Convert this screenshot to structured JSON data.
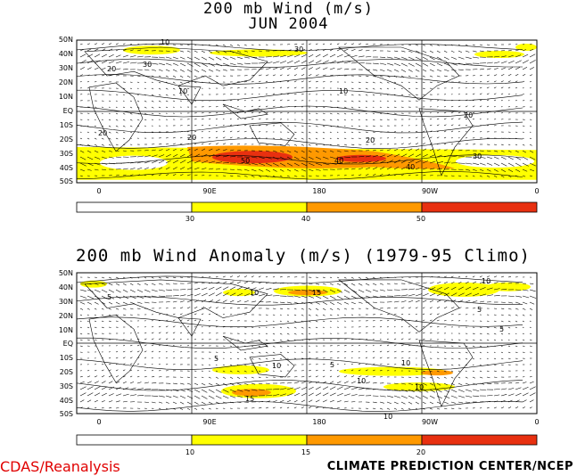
{
  "top": {
    "title_line1": "200 mb Wind (m/s)",
    "title_line2": "JUN 2004",
    "lat_labels": [
      "50N",
      "40N",
      "30N",
      "20N",
      "10N",
      "EQ",
      "10S",
      "20S",
      "30S",
      "40S",
      "50S"
    ],
    "lon_labels": [
      "0",
      "90E",
      "180",
      "90W",
      "0"
    ],
    "colorbar": [
      "30",
      "40",
      "50"
    ],
    "contour_labels": [
      "10",
      "20",
      "30",
      "40",
      "50"
    ]
  },
  "bottom": {
    "title": "200 mb Wind Anomaly (m/s) (1979-95 Climo)",
    "lat_labels": [
      "50N",
      "40N",
      "30N",
      "20N",
      "10N",
      "EQ",
      "10S",
      "20S",
      "30S",
      "40S",
      "50S"
    ],
    "lon_labels": [
      "0",
      "90E",
      "180",
      "90W",
      "0"
    ],
    "colorbar": [
      "10",
      "15",
      "20"
    ],
    "contour_labels": [
      "5",
      "10",
      "15"
    ]
  },
  "footer": {
    "left": "CDAS/Reanalysis",
    "right": "CLIMATE PREDICTION CENTER/NCEP"
  },
  "colors": {
    "shade1": "#ffff00",
    "shade2": "#ff9900",
    "shade3": "#e83010",
    "footer_left": "#e00000"
  },
  "chart_data": [
    {
      "type": "heatmap",
      "title": "200 mb Wind (m/s)",
      "subtitle": "JUN 2004",
      "y_range": [
        "50S",
        "50N"
      ],
      "x_range": [
        "0",
        "0"
      ],
      "shading_thresholds": [
        30,
        40,
        50
      ],
      "contour_interval": 10,
      "features": [
        {
          "region": "Southern Hemisphere subtropical jet (30S-40S)",
          "max_speed": 50
        },
        {
          "region": "Northern Hemisphere jet (~40N)",
          "max_speed": 30
        }
      ]
    },
    {
      "type": "heatmap",
      "title": "200 mb Wind Anomaly (m/s) (1979-95 Climo)",
      "y_range": [
        "50S",
        "50N"
      ],
      "x_range": [
        "0",
        "0"
      ],
      "shading_thresholds": [
        10,
        15,
        20
      ],
      "contour_interval": 5,
      "features": [
        {
          "region": "South of Australia (~35S)",
          "max_anomaly": 15
        },
        {
          "region": "North Pacific near 180 (~35N)",
          "max_anomaly": 15
        }
      ]
    }
  ]
}
